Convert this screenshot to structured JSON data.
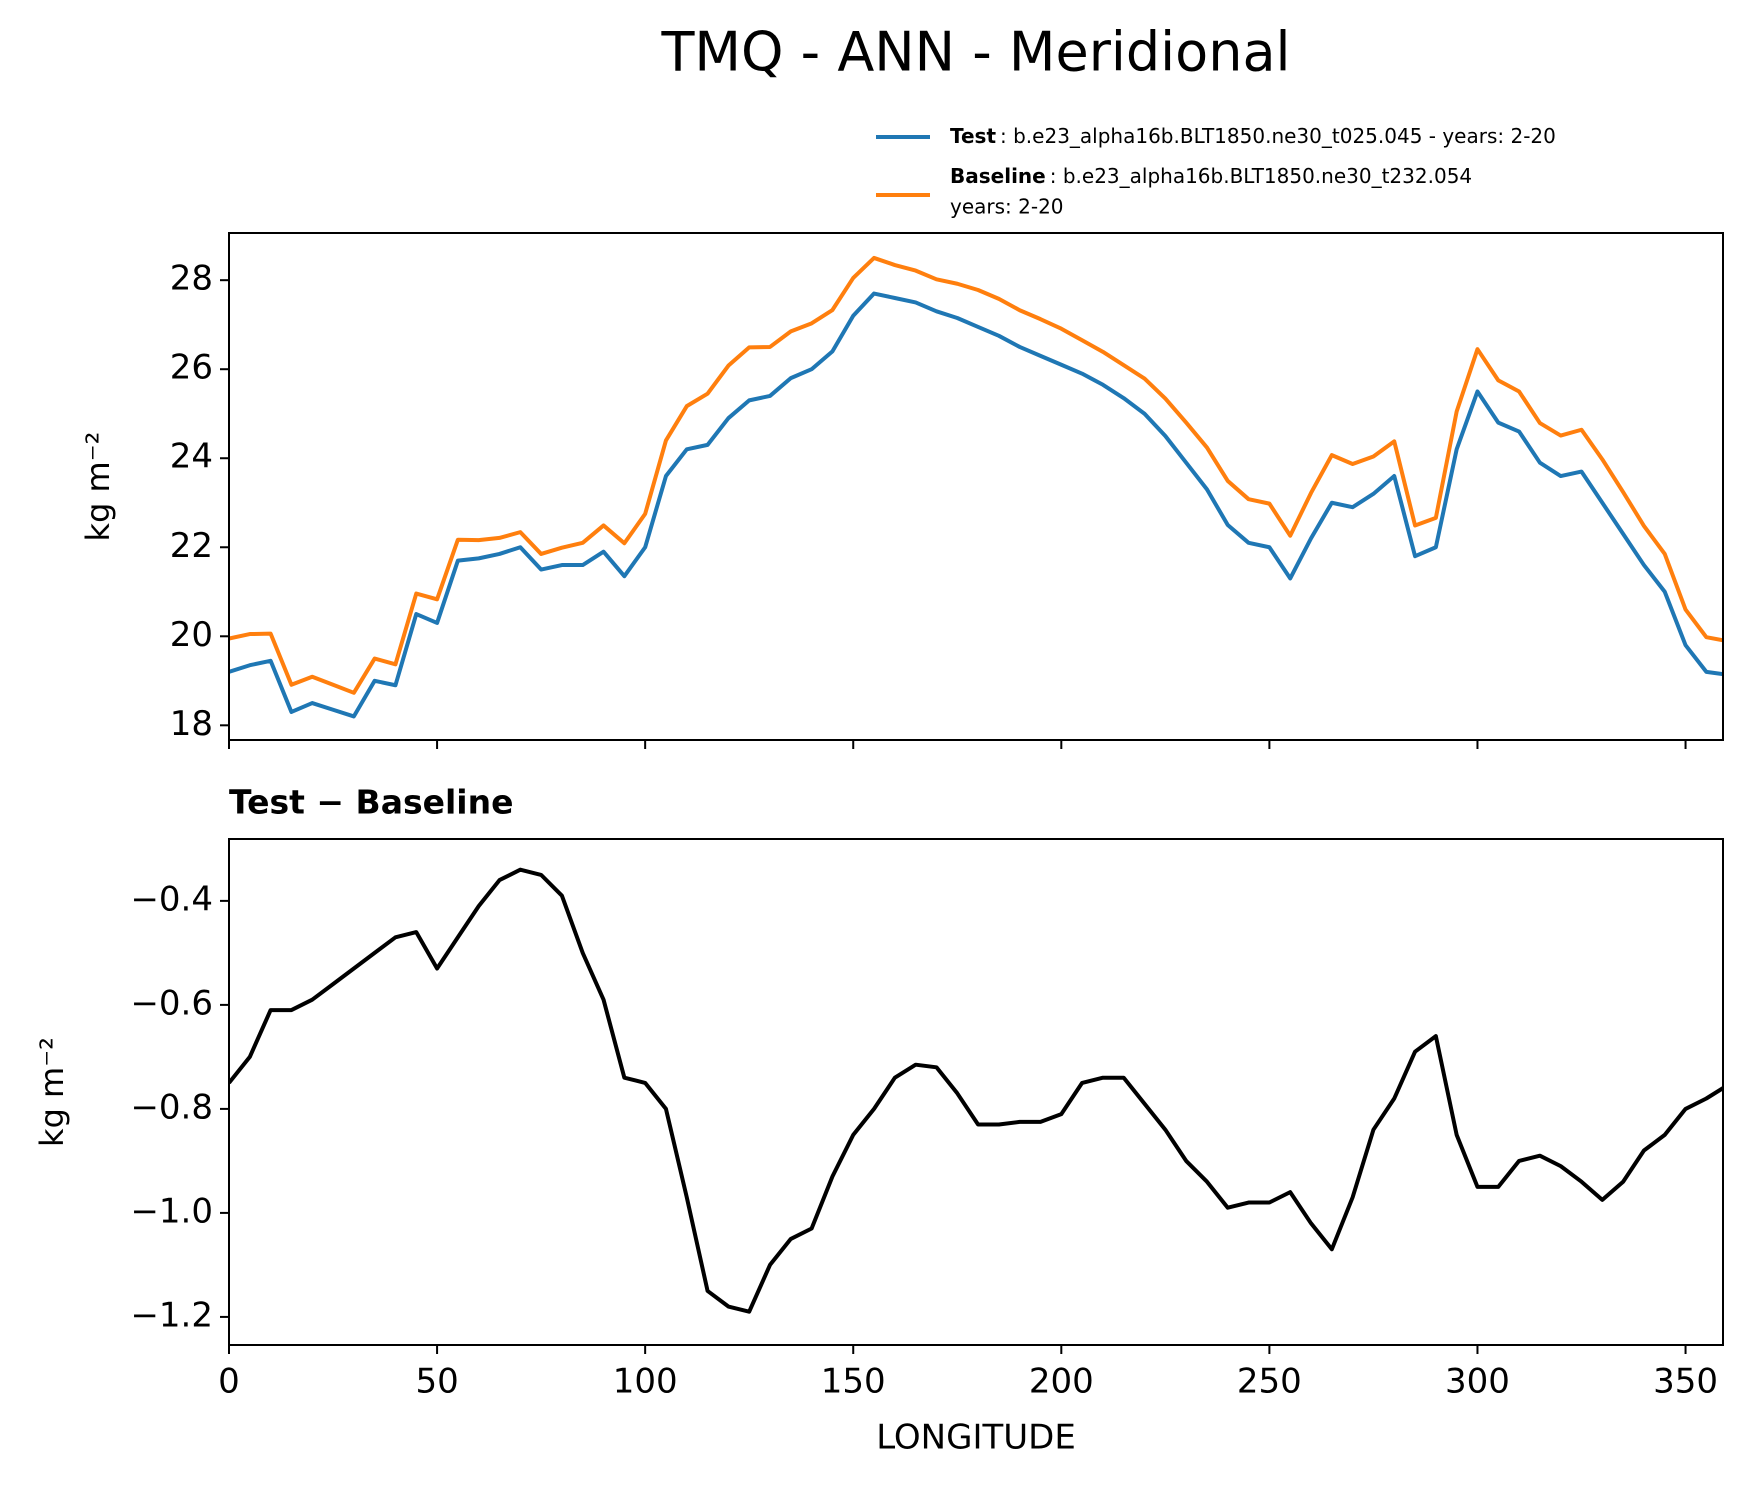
{
  "chart_data": [
    {
      "type": "line",
      "title": "TMQ - ANN - Meridional",
      "ylabel": "kg m⁻²",
      "x": [
        0,
        5,
        10,
        15,
        20,
        25,
        30,
        35,
        40,
        45,
        50,
        55,
        60,
        65,
        70,
        75,
        80,
        85,
        90,
        95,
        100,
        105,
        110,
        115,
        120,
        125,
        130,
        135,
        140,
        145,
        150,
        155,
        160,
        165,
        170,
        175,
        180,
        185,
        190,
        195,
        200,
        205,
        210,
        215,
        220,
        225,
        230,
        235,
        240,
        245,
        250,
        255,
        260,
        265,
        270,
        275,
        280,
        285,
        290,
        295,
        300,
        305,
        310,
        315,
        320,
        325,
        330,
        335,
        340,
        345,
        350,
        355,
        359
      ],
      "series": [
        {
          "name": "Test",
          "label_lines": [
            ": b.e23_alpha16b.BLT1850.ne30_t025.045 - years: 2-20"
          ],
          "color": "#1f77b4",
          "values": [
            19.2,
            19.35,
            19.45,
            18.3,
            18.5,
            18.35,
            18.2,
            19.0,
            18.9,
            20.5,
            20.3,
            21.7,
            21.75,
            21.85,
            22.0,
            21.5,
            21.6,
            21.6,
            21.9,
            21.35,
            22.0,
            23.6,
            24.2,
            24.3,
            24.9,
            25.3,
            25.4,
            25.8,
            26.0,
            26.4,
            27.2,
            27.7,
            27.6,
            27.5,
            27.3,
            27.15,
            26.95,
            26.75,
            26.5,
            26.3,
            26.1,
            25.9,
            25.65,
            25.35,
            25.0,
            24.5,
            23.9,
            23.3,
            22.5,
            22.1,
            22.0,
            21.3,
            22.2,
            23.0,
            22.9,
            23.2,
            23.6,
            21.8,
            22.0,
            24.2,
            25.5,
            24.8,
            24.6,
            23.9,
            23.6,
            23.7,
            23.0,
            22.3,
            21.6,
            21.0,
            19.8,
            19.2,
            19.15
          ]
        },
        {
          "name": "Baseline",
          "label_lines": [
            ": b.e23_alpha16b.BLT1850.ne30_t232.054",
            "years: 2-20"
          ],
          "color": "#ff7f0e",
          "values": [
            19.95,
            20.05,
            20.06,
            18.91,
            19.09,
            18.91,
            18.73,
            19.5,
            19.37,
            20.96,
            20.83,
            22.17,
            22.16,
            22.21,
            22.34,
            21.85,
            21.99,
            22.1,
            22.49,
            22.09,
            22.75,
            24.4,
            25.17,
            25.45,
            26.08,
            26.49,
            26.5,
            26.85,
            27.03,
            27.33,
            28.05,
            28.5,
            28.34,
            28.215,
            28.02,
            27.92,
            27.78,
            27.58,
            27.325,
            27.125,
            26.91,
            26.65,
            26.39,
            26.09,
            25.79,
            25.34,
            24.8,
            24.24,
            23.49,
            23.08,
            22.98,
            22.26,
            23.22,
            24.07,
            23.87,
            24.04,
            24.38,
            22.49,
            22.66,
            25.05,
            26.45,
            25.75,
            25.5,
            24.79,
            24.51,
            24.64,
            23.975,
            23.24,
            22.48,
            21.85,
            20.6,
            19.98,
            19.91
          ]
        }
      ],
      "xlim": [
        0,
        359
      ],
      "xticks": [
        0,
        50,
        100,
        150,
        200,
        250,
        300,
        350
      ],
      "ylim": [
        17.67,
        29.06
      ],
      "yticks": [
        18,
        20,
        22,
        24,
        26,
        28
      ]
    },
    {
      "type": "line",
      "subtitle": "Test − Baseline",
      "ylabel": "kg m⁻²",
      "xlabel": "LONGITUDE",
      "color": "#000000",
      "x": [
        0,
        5,
        10,
        15,
        20,
        25,
        30,
        35,
        40,
        45,
        50,
        55,
        60,
        65,
        70,
        75,
        80,
        85,
        90,
        95,
        100,
        105,
        110,
        115,
        120,
        125,
        130,
        135,
        140,
        145,
        150,
        155,
        160,
        165,
        170,
        175,
        180,
        185,
        190,
        195,
        200,
        205,
        210,
        215,
        220,
        225,
        230,
        235,
        240,
        245,
        250,
        255,
        260,
        265,
        270,
        275,
        280,
        285,
        290,
        295,
        300,
        305,
        310,
        315,
        320,
        325,
        330,
        335,
        340,
        345,
        350,
        355,
        359
      ],
      "values": [
        -0.75,
        -0.7,
        -0.61,
        -0.61,
        -0.59,
        -0.56,
        -0.53,
        -0.5,
        -0.47,
        -0.46,
        -0.53,
        -0.47,
        -0.41,
        -0.36,
        -0.34,
        -0.35,
        -0.39,
        -0.5,
        -0.59,
        -0.74,
        -0.75,
        -0.8,
        -0.97,
        -1.15,
        -1.18,
        -1.19,
        -1.1,
        -1.05,
        -1.03,
        -0.93,
        -0.85,
        -0.8,
        -0.74,
        -0.715,
        -0.72,
        -0.77,
        -0.83,
        -0.83,
        -0.825,
        -0.825,
        -0.81,
        -0.75,
        -0.74,
        -0.74,
        -0.79,
        -0.84,
        -0.9,
        -0.94,
        -0.99,
        -0.98,
        -0.98,
        -0.96,
        -1.02,
        -1.07,
        -0.97,
        -0.84,
        -0.78,
        -0.69,
        -0.66,
        -0.85,
        -0.95,
        -0.95,
        -0.9,
        -0.89,
        -0.91,
        -0.94,
        -0.975,
        -0.94,
        -0.88,
        -0.85,
        -0.8,
        -0.78,
        -0.76
      ],
      "xlim": [
        0,
        359
      ],
      "xticks": [
        0,
        50,
        100,
        150,
        200,
        250,
        300,
        350
      ],
      "ylim": [
        -1.254,
        -0.281
      ],
      "yticks": [
        {
          "value": -1.2,
          "label": "−1.2"
        },
        {
          "value": -1.0,
          "label": "−1.0"
        },
        {
          "value": -0.8,
          "label": "−0.8"
        },
        {
          "value": -0.6,
          "label": "−0.6"
        },
        {
          "value": -0.4,
          "label": "−0.4"
        }
      ]
    }
  ]
}
